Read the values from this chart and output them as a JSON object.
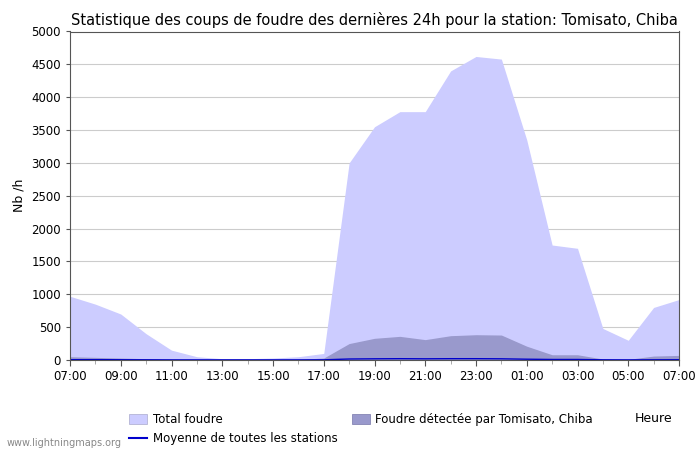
{
  "title": "Statistique des coups de foudre des dernières 24h pour la station: Tomisato, Chiba",
  "xlabel": "Heure",
  "ylabel": "Nb /h",
  "watermark": "www.lightningmaps.org",
  "ylim": [
    0,
    5000
  ],
  "yticks": [
    0,
    500,
    1000,
    1500,
    2000,
    2500,
    3000,
    3500,
    4000,
    4500,
    5000
  ],
  "xtick_labels": [
    "07:00",
    "09:00",
    "11:00",
    "13:00",
    "15:00",
    "17:00",
    "19:00",
    "21:00",
    "23:00",
    "01:00",
    "03:00",
    "05:00",
    "07:00"
  ],
  "n_points": 25,
  "total_foudre": [
    970,
    850,
    700,
    400,
    150,
    50,
    20,
    20,
    30,
    50,
    100,
    3000,
    3550,
    3780,
    3780,
    4400,
    4620,
    4580,
    3350,
    1750,
    1700,
    480,
    300,
    800,
    920
  ],
  "foudre_detectee": [
    50,
    40,
    30,
    20,
    10,
    5,
    5,
    5,
    5,
    10,
    30,
    250,
    330,
    360,
    310,
    370,
    385,
    380,
    210,
    80,
    80,
    15,
    10,
    60,
    70
  ],
  "moyenne_stations": [
    5,
    5,
    4,
    3,
    2,
    2,
    2,
    2,
    2,
    2,
    3,
    15,
    18,
    20,
    18,
    20,
    20,
    18,
    12,
    8,
    8,
    3,
    2,
    3,
    4
  ],
  "color_total": "#ccccff",
  "color_detectee": "#9999cc",
  "color_moyenne": "#0000cc",
  "legend_total": "Total foudre",
  "legend_detectee": "Foudre détectée par Tomisato, Chiba",
  "legend_moyenne": "Moyenne de toutes les stations",
  "background_color": "#ffffff",
  "grid_color": "#cccccc",
  "title_fontsize": 10.5,
  "axis_fontsize": 9,
  "tick_fontsize": 8.5
}
